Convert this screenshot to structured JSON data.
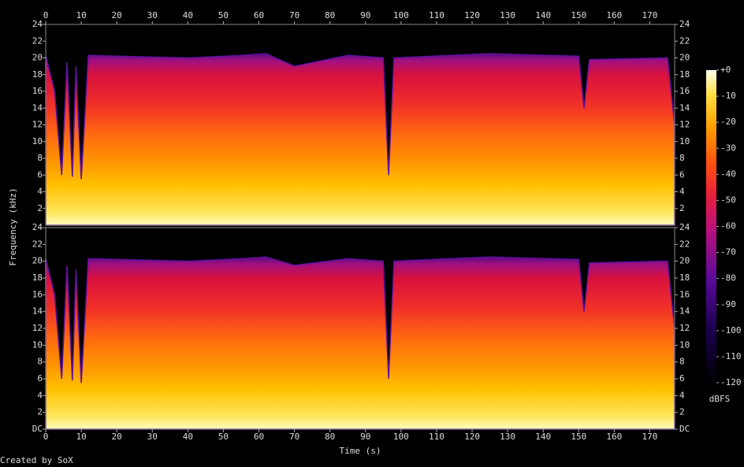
{
  "chart_data": {
    "type": "spectrogram",
    "x_label": "Time (s)",
    "y_label": "Frequency (kHz)",
    "colorbar_label": "dBFS",
    "footer": "Created by SoX",
    "xlim": [
      0,
      177
    ],
    "xticks": [
      0,
      10,
      20,
      30,
      40,
      50,
      60,
      70,
      80,
      90,
      100,
      110,
      120,
      130,
      140,
      150,
      160,
      170
    ],
    "zlim": [
      -120,
      0
    ],
    "zticks": [
      {
        "value": 0,
        "label": "+0"
      },
      -10,
      -20,
      -30,
      -40,
      -50,
      -60,
      -70,
      -80,
      -90,
      -100,
      -110,
      -120
    ],
    "panels": [
      {
        "ylim": [
          0,
          24
        ],
        "yticks": [
          2,
          4,
          6,
          8,
          10,
          12,
          14,
          16,
          18,
          20,
          22,
          24
        ],
        "x": [
          0,
          2.5,
          4.5,
          6,
          7.5,
          8.5,
          10,
          12,
          40,
          55,
          62,
          70,
          85,
          95,
          96.5,
          98,
          125,
          150,
          151.5,
          153,
          175,
          177
        ],
        "values": [
          20.3,
          16,
          6,
          19.5,
          5.8,
          19,
          5.5,
          20.3,
          20,
          20.3,
          20.5,
          19,
          20.3,
          20,
          6,
          20,
          20.5,
          20.2,
          14,
          19.8,
          20,
          12
        ]
      },
      {
        "ylim": [
          0,
          24
        ],
        "yticks": [
          {
            "value": 0,
            "label": "DC"
          },
          2,
          4,
          6,
          8,
          10,
          12,
          14,
          16,
          18,
          20,
          22,
          24
        ],
        "x": [
          0,
          2.5,
          4.5,
          6,
          7.5,
          8.5,
          10,
          12,
          40,
          55,
          62,
          70,
          85,
          95,
          96.5,
          98,
          125,
          150,
          151.5,
          153,
          175,
          177
        ],
        "values": [
          20.3,
          16,
          6,
          19.5,
          5.8,
          19,
          5.5,
          20.3,
          20,
          20.3,
          20.5,
          19.5,
          20.3,
          20,
          6,
          20,
          20.5,
          20.2,
          14,
          19.8,
          20,
          12
        ]
      }
    ]
  }
}
